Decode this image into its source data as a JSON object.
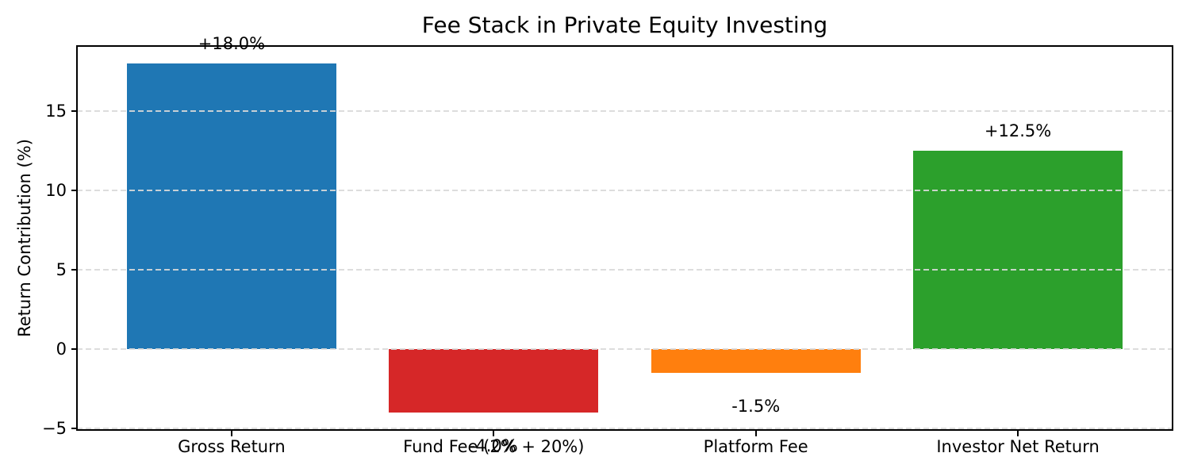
{
  "figure": {
    "background": "#ffffff",
    "text_color": "#000000",
    "spine_color": "#000000"
  },
  "chart_data": {
    "type": "bar",
    "title": "Fee Stack in Private Equity Investing",
    "ylabel": "Return Contribution (%)",
    "xlabel": "",
    "categories": [
      "Gross Return",
      "Fund Fee (2% + 20%)",
      "Platform Fee",
      "Investor Net Return"
    ],
    "values": [
      18.0,
      -4.0,
      -1.5,
      12.5
    ],
    "bar_labels": [
      "+18.0%",
      "-4.0%",
      "-1.5%",
      "+12.5%"
    ],
    "bar_colors": [
      "#1f77b4",
      "#d62728",
      "#ff7f0e",
      "#2ca02c"
    ],
    "yticks": [
      -5,
      0,
      5,
      10,
      15
    ],
    "ytick_labels": [
      "−5",
      "0",
      "5",
      "10",
      "15"
    ],
    "ylim": [
      -5.1,
      19.1
    ],
    "xlim": [
      -0.59,
      3.59
    ],
    "bar_width": 0.8,
    "grid": "horizontal-dashed",
    "grid_color": "#d9d9d9",
    "legend_position": "none"
  }
}
